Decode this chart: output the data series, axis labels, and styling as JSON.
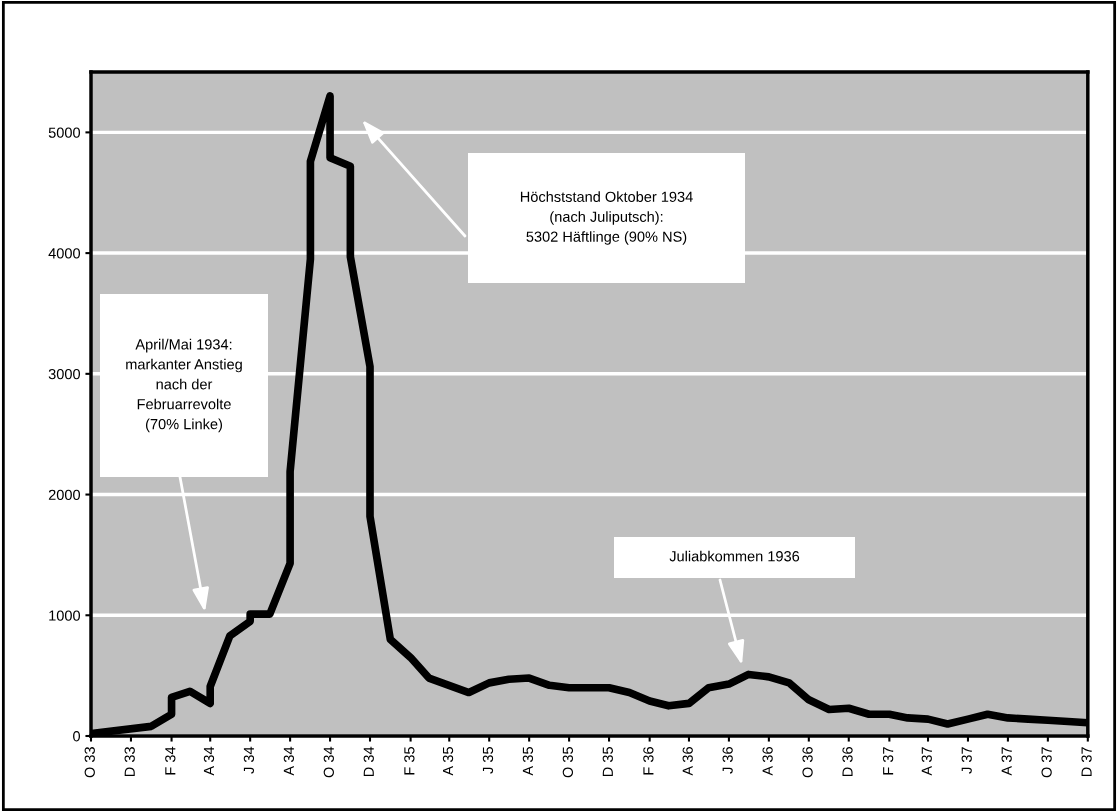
{
  "chart_data": {
    "type": "line",
    "x": [
      "1933-10",
      "1934-01",
      "1934-02",
      "1934-02",
      "1934-03",
      "1934-04",
      "1934-04",
      "1934-05",
      "1934-06",
      "1934-06",
      "1934-07",
      "1934-08",
      "1934-08",
      "1934-09",
      "1934-09",
      "1934-10",
      "1934-10",
      "1934-11",
      "1934-11",
      "1934-12",
      "1934-12",
      "1935-01",
      "1935-02",
      "1935-03",
      "1935-05",
      "1935-06",
      "1935-07",
      "1935-08",
      "1935-09",
      "1935-10",
      "1935-12",
      "1936-01",
      "1936-02",
      "1936-03",
      "1936-04",
      "1936-05",
      "1936-06",
      "1936-07",
      "1936-08",
      "1936-09",
      "1936-10",
      "1936-11",
      "1936-12",
      "1937-01",
      "1937-02",
      "1937-03",
      "1937-04",
      "1937-05",
      "1937-06",
      "1937-07",
      "1937-08",
      "1937-09",
      "1937-10",
      "1937-11",
      "1937-12"
    ],
    "series": [
      {
        "color": "#000000",
        "values": [
          20,
          80,
          180,
          320,
          370,
          270,
          410,
          830,
          950,
          1010,
          1010,
          1430,
          2190,
          3950,
          4760,
          5302,
          4790,
          4720,
          3970,
          3060,
          1820,
          800,
          650,
          480,
          360,
          440,
          470,
          480,
          420,
          400,
          400,
          360,
          290,
          250,
          270,
          400,
          430,
          510,
          490,
          440,
          300,
          220,
          230,
          180,
          180,
          150,
          140,
          100,
          140,
          180,
          150,
          140,
          130,
          120,
          110
        ]
      }
    ],
    "xlim": [
      "1933-10",
      "1937-12"
    ],
    "xticks": [
      {
        "value": "1933-10",
        "label": "O 33"
      },
      {
        "value": "1933-12",
        "label": "D 33"
      },
      {
        "value": "1934-02",
        "label": "F 34"
      },
      {
        "value": "1934-04",
        "label": "A 34"
      },
      {
        "value": "1934-06",
        "label": "J 34"
      },
      {
        "value": "1934-08",
        "label": "A 34"
      },
      {
        "value": "1934-10",
        "label": "O 34"
      },
      {
        "value": "1934-12",
        "label": "D 34"
      },
      {
        "value": "1935-02",
        "label": "F 35"
      },
      {
        "value": "1935-04",
        "label": "A 35"
      },
      {
        "value": "1935-06",
        "label": "J 35"
      },
      {
        "value": "1935-08",
        "label": "A 35"
      },
      {
        "value": "1935-10",
        "label": "O 35"
      },
      {
        "value": "1935-12",
        "label": "D 35"
      },
      {
        "value": "1936-02",
        "label": "F 36"
      },
      {
        "value": "1936-04",
        "label": "A 36"
      },
      {
        "value": "1936-06",
        "label": "J 36"
      },
      {
        "value": "1936-08",
        "label": "A 36"
      },
      {
        "value": "1936-10",
        "label": "O 36"
      },
      {
        "value": "1936-12",
        "label": "D 36"
      },
      {
        "value": "1937-02",
        "label": "F 37"
      },
      {
        "value": "1937-04",
        "label": "A 37"
      },
      {
        "value": "1937-06",
        "label": "J 37"
      },
      {
        "value": "1937-08",
        "label": "A 37"
      },
      {
        "value": "1937-10",
        "label": "O 37"
      },
      {
        "value": "1937-12",
        "label": "D 37"
      }
    ],
    "ylim": [
      0,
      5500
    ],
    "yticks": [
      0,
      1000,
      2000,
      3000,
      4000,
      5000
    ],
    "grid": "y",
    "marker": "none",
    "line_style": "solid",
    "annotations": [
      "Höchststand Oktober 1934\n(nach Juliputsch):\n5302 Häftlinge (90% NS)",
      "April/Mai 1934:\nmarkanter Anstieg\nnach der\nFebruarrevolte\n(70% Linke)",
      "Juliabkommen 1936"
    ]
  }
}
